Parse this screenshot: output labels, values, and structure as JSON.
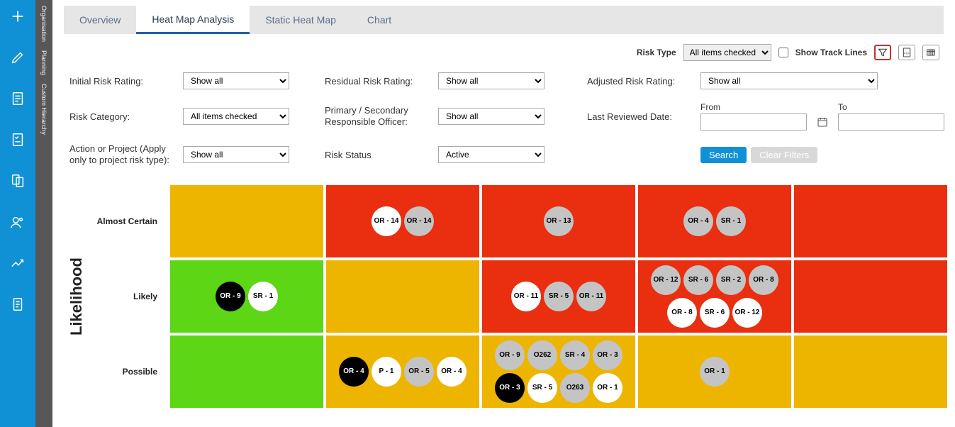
{
  "nav_labels": [
    "Organisation",
    "Planning",
    "Custom Hierarchy"
  ],
  "tabs": [
    {
      "label": "Overview",
      "active": false
    },
    {
      "label": "Heat Map Analysis",
      "active": true
    },
    {
      "label": "Static Heat Map",
      "active": false
    },
    {
      "label": "Chart",
      "active": false
    }
  ],
  "toolbar": {
    "risk_type_label": "Risk Type",
    "risk_type_value": "All items checked",
    "track_lines_label": "Show Track Lines",
    "track_lines_checked": false
  },
  "filters": {
    "initial_label": "Initial Risk Rating:",
    "initial_value": "Show all",
    "residual_label": "Residual Risk Rating:",
    "residual_value": "Show all",
    "adjusted_label": "Adjusted Risk Rating:",
    "adjusted_value": "Show all",
    "category_label": "Risk Category:",
    "category_value": "All items checked",
    "officer_label": "Primary / Secondary Responsible Officer:",
    "officer_value": "Show all",
    "reviewed_label": "Last Reviewed Date:",
    "from_label": "From",
    "to_label": "To",
    "action_label": "Action or Project (Apply only to project risk type):",
    "action_value": "Show all",
    "status_label": "Risk Status",
    "status_value": "Active",
    "search_btn": "Search",
    "clear_btn": "Clear Filters"
  },
  "heatmap": {
    "y_axis_title": "Likelihood",
    "row_labels": [
      "Almost Certain",
      "Likely",
      "Possible"
    ],
    "cell_colors": {
      "green": "#5cd615",
      "amber": "#edb500",
      "red": "#ea2e10"
    },
    "grid": [
      [
        {
          "color": "amber",
          "bubbles": []
        },
        {
          "color": "red",
          "bubbles": [
            {
              "label": "OR - 14",
              "style": "white"
            },
            {
              "label": "OR - 14",
              "style": "gray"
            }
          ]
        },
        {
          "color": "red",
          "bubbles": [
            {
              "label": "OR - 13",
              "style": "gray"
            }
          ]
        },
        {
          "color": "red",
          "bubbles": [
            {
              "label": "OR - 4",
              "style": "gray"
            },
            {
              "label": "SR - 1",
              "style": "gray"
            }
          ]
        },
        {
          "color": "red",
          "bubbles": []
        }
      ],
      [
        {
          "color": "green",
          "bubbles": [
            {
              "label": "OR - 9",
              "style": "black"
            },
            {
              "label": "SR - 1",
              "style": "white"
            }
          ]
        },
        {
          "color": "amber",
          "bubbles": []
        },
        {
          "color": "red",
          "bubbles": [
            {
              "label": "OR - 11",
              "style": "white"
            },
            {
              "label": "SR - 5",
              "style": "gray"
            },
            {
              "label": "OR - 11",
              "style": "gray"
            }
          ]
        },
        {
          "color": "red",
          "bubbles": [
            {
              "label": "OR - 12",
              "style": "gray"
            },
            {
              "label": "SR - 6",
              "style": "gray"
            },
            {
              "label": "SR - 2",
              "style": "gray"
            },
            {
              "label": "OR - 8",
              "style": "gray"
            },
            {
              "label": "OR - 8",
              "style": "white"
            },
            {
              "label": "SR - 6",
              "style": "white"
            },
            {
              "label": "OR - 12",
              "style": "white"
            }
          ]
        },
        {
          "color": "red",
          "bubbles": []
        }
      ],
      [
        {
          "color": "green",
          "bubbles": []
        },
        {
          "color": "amber",
          "bubbles": [
            {
              "label": "OR - 4",
              "style": "black"
            },
            {
              "label": "P - 1",
              "style": "white"
            },
            {
              "label": "OR - 5",
              "style": "gray"
            },
            {
              "label": "OR - 4",
              "style": "white"
            }
          ]
        },
        {
          "color": "amber",
          "bubbles": [
            {
              "label": "OR - 9",
              "style": "gray"
            },
            {
              "label": "O262",
              "style": "gray"
            },
            {
              "label": "SR - 4",
              "style": "gray"
            },
            {
              "label": "OR - 3",
              "style": "gray"
            },
            {
              "label": "OR - 3",
              "style": "black"
            },
            {
              "label": "SR - 5",
              "style": "white"
            },
            {
              "label": "O263",
              "style": "gray"
            },
            {
              "label": "OR - 1",
              "style": "white"
            }
          ]
        },
        {
          "color": "amber",
          "bubbles": [
            {
              "label": "OR - 1",
              "style": "gray"
            }
          ]
        },
        {
          "color": "amber",
          "bubbles": []
        }
      ]
    ]
  }
}
